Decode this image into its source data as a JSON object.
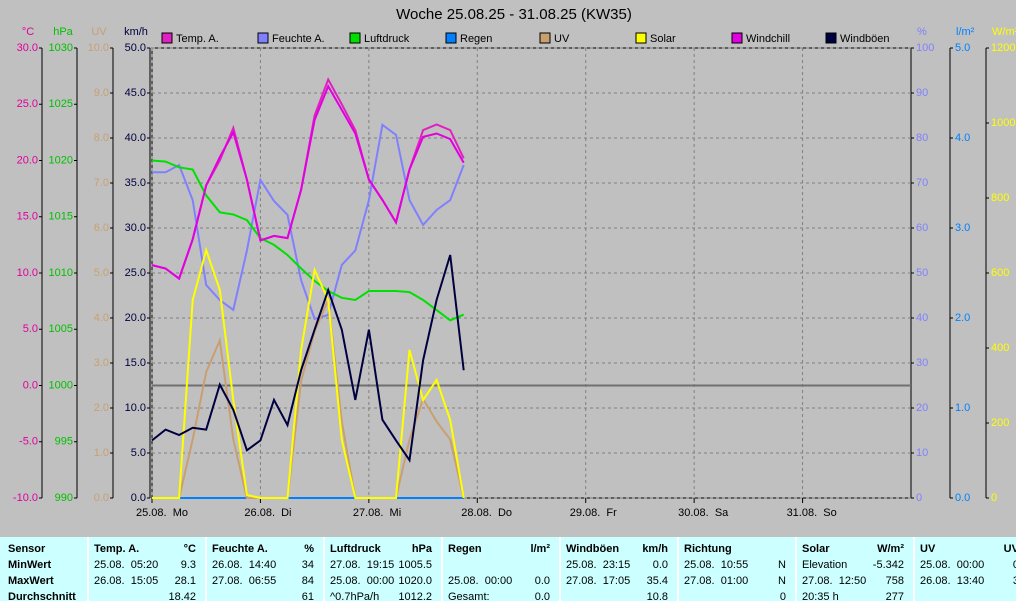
{
  "chart_data": {
    "type": "line",
    "title": "Woche 25.08.25 - 31.08.25 (KW35)",
    "xlim": [
      0,
      168
    ],
    "xticks": [
      {
        "value": 0,
        "label": "25.08.  Mo"
      },
      {
        "value": 24,
        "label": "26.08.  Di"
      },
      {
        "value": 48,
        "label": "27.08.  Mi"
      },
      {
        "value": 72,
        "label": "28.08.  Do"
      },
      {
        "value": 96,
        "label": "29.08.  Fr"
      },
      {
        "value": 120,
        "label": "30.08.  Sa"
      },
      {
        "value": 144,
        "label": "31.08.  So"
      }
    ],
    "grid": true,
    "axes": [
      {
        "label": "°C",
        "color": "#e000a0",
        "side": "left",
        "lim": [
          -10,
          30
        ],
        "ticks": [
          {
            "value": 30,
            "label": "30.0"
          },
          {
            "value": 25,
            "label": "25.0"
          },
          {
            "value": 20,
            "label": "20.0"
          },
          {
            "value": 15,
            "label": "15.0"
          },
          {
            "value": 10,
            "label": "10.0"
          },
          {
            "value": 5,
            "label": "5.0"
          },
          {
            "value": 0,
            "label": "0.0"
          },
          {
            "value": -5,
            "label": "-5.0"
          },
          {
            "value": -10,
            "label": "-10.0"
          }
        ]
      },
      {
        "label": "hPa",
        "color": "#00c000",
        "side": "left",
        "lim": [
          990,
          1030
        ],
        "ticks": [
          1030,
          1025,
          1020,
          1015,
          1010,
          1005,
          1000,
          995,
          990
        ]
      },
      {
        "label": "UV",
        "color": "#c8a070",
        "side": "left",
        "lim": [
          0,
          10
        ],
        "ticks": [
          {
            "value": 10,
            "label": "10.0"
          },
          {
            "value": 9,
            "label": "9.0"
          },
          {
            "value": 8,
            "label": "8.0"
          },
          {
            "value": 7,
            "label": "7.0"
          },
          {
            "value": 6,
            "label": "6.0"
          },
          {
            "value": 5,
            "label": "5.0"
          },
          {
            "value": 4,
            "label": "4.0"
          },
          {
            "value": 3,
            "label": "3.0"
          },
          {
            "value": 2,
            "label": "2.0"
          },
          {
            "value": 1,
            "label": "1.0"
          },
          {
            "value": 0,
            "label": "0.0"
          }
        ]
      },
      {
        "label": "km/h",
        "color": "#000040",
        "side": "left",
        "lim": [
          0,
          50
        ],
        "ticks": [
          {
            "value": 50,
            "label": "50.0"
          },
          {
            "value": 45,
            "label": "45.0"
          },
          {
            "value": 40,
            "label": "40.0"
          },
          {
            "value": 35,
            "label": "35.0"
          },
          {
            "value": 30,
            "label": "30.0"
          },
          {
            "value": 25,
            "label": "25.0"
          },
          {
            "value": 20,
            "label": "20.0"
          },
          {
            "value": 15,
            "label": "15.0"
          },
          {
            "value": 10,
            "label": "10.0"
          },
          {
            "value": 5,
            "label": "5.0"
          },
          {
            "value": 0,
            "label": "0.0"
          }
        ]
      },
      {
        "label": "%",
        "color": "#8080ff",
        "side": "right",
        "lim": [
          0,
          100
        ],
        "ticks": [
          100,
          90,
          80,
          70,
          60,
          50,
          40,
          30,
          20,
          10,
          0
        ]
      },
      {
        "label": "l/m²",
        "color": "#0080ff",
        "side": "right",
        "lim": [
          0,
          5
        ],
        "ticks": [
          {
            "value": 5,
            "label": "5.0"
          },
          {
            "value": 4,
            "label": "4.0"
          },
          {
            "value": 3,
            "label": "3.0"
          },
          {
            "value": 2,
            "label": "2.0"
          },
          {
            "value": 1,
            "label": "1.0"
          },
          {
            "value": 0,
            "label": "0.0"
          }
        ]
      },
      {
        "label": "W/m²",
        "color": "#ffff00",
        "side": "right",
        "lim": [
          0,
          1200
        ],
        "ticks": [
          1200,
          1000,
          800,
          600,
          400,
          200,
          0
        ]
      }
    ],
    "x": [
      0,
      3,
      6,
      9,
      12,
      15,
      18,
      21,
      24,
      27,
      30,
      33,
      36,
      39,
      42,
      45,
      48,
      51,
      54,
      57,
      60,
      63,
      66,
      69
    ],
    "series": [
      {
        "name": "Temp. A.",
        "color": "#e020c0",
        "axis": 0,
        "values": [
          10.7,
          10.4,
          9.5,
          13,
          17.8,
          20,
          22.9,
          18.3,
          12.9,
          13.3,
          13.1,
          17.4,
          24,
          27.2,
          25,
          22.7,
          18.3,
          16.5,
          14.5,
          19.2,
          22.7,
          23.2,
          22.7,
          20.2
        ]
      },
      {
        "name": "Feuchte A.",
        "color": "#8080ff",
        "axis": 4,
        "values": [
          72.4,
          72.4,
          74,
          66.2,
          47.3,
          44,
          41.8,
          55,
          70.7,
          66,
          62.9,
          48.4,
          39.8,
          40.7,
          51.8,
          55,
          66.2,
          82.9,
          80.7,
          66.2,
          60.7,
          64,
          66.2,
          74
        ]
      },
      {
        "name": "Luftdruck",
        "color": "#00e000",
        "axis": 1,
        "values": [
          1020,
          1019.9,
          1019.4,
          1019.2,
          1016.9,
          1015.4,
          1015.2,
          1014.7,
          1013.1,
          1012.5,
          1011.6,
          1010.4,
          1009.3,
          1008.4,
          1007.8,
          1007.6,
          1008.4,
          1008.4,
          1008.4,
          1008.3,
          1007.6,
          1006.7,
          1005.8,
          1006.3
        ]
      },
      {
        "name": "Regen",
        "color": "#0080ff",
        "axis": 5,
        "values": [
          0,
          0,
          0,
          0,
          0,
          0,
          0,
          0,
          0,
          0,
          0,
          0,
          0,
          0,
          0,
          0,
          0,
          0,
          0,
          0,
          0,
          0,
          0,
          0
        ]
      },
      {
        "name": "UV",
        "color": "#c8a070",
        "axis": 2,
        "values": [
          0,
          0,
          0,
          1.3,
          2.8,
          3.5,
          1.3,
          0,
          0,
          0,
          0,
          2.6,
          3.7,
          4.4,
          1.7,
          0,
          0,
          0,
          0,
          1.3,
          2.2,
          1.7,
          1.3,
          0
        ]
      },
      {
        "name": "Solar",
        "color": "#ffff00",
        "axis": 6,
        "values": [
          0,
          0,
          0,
          528,
          661,
          555,
          261,
          8,
          0,
          0,
          0,
          395,
          608,
          528,
          155,
          0,
          0,
          0,
          0,
          395,
          261,
          315,
          208,
          0
        ]
      },
      {
        "name": "Windchill",
        "color": "#e000e0",
        "axis": 0,
        "values": [
          10.7,
          10.4,
          9.5,
          13,
          17.8,
          20.3,
          22.5,
          18.3,
          12.9,
          13.3,
          13.1,
          17.4,
          23.6,
          26.6,
          24.5,
          22.4,
          18.3,
          16.5,
          14.5,
          19.2,
          22.1,
          22.4,
          21.9,
          19.8
        ]
      },
      {
        "name": "Windböen",
        "color": "#000040",
        "axis": 3,
        "values": [
          6.4,
          7.6,
          7,
          7.8,
          7.6,
          12.6,
          9.8,
          5.3,
          6.4,
          10.9,
          8.1,
          14.2,
          18.7,
          23.1,
          18.7,
          10.9,
          18.7,
          8.7,
          6.4,
          4.2,
          15.3,
          22,
          27,
          14.2
        ]
      }
    ]
  },
  "table": {
    "row_labels": [
      "Sensor",
      "MinWert",
      "MaxWert",
      "Durchschnitt"
    ],
    "groups": [
      {
        "name": "Temp. A.",
        "unit": "°C",
        "rows": [
          [
            "25.08.  05:20",
            "9.3"
          ],
          [
            "26.08.  15:05",
            "28.1"
          ],
          [
            "18.42"
          ]
        ]
      },
      {
        "name": "Feuchte A.",
        "unit": "%",
        "rows": [
          [
            "26.08.  14:40",
            "34"
          ],
          [
            "27.08.  06:55",
            "84"
          ],
          [
            "61"
          ]
        ]
      },
      {
        "name": "Luftdruck",
        "unit": "hPa",
        "rows": [
          [
            "27.08.  19:15",
            "1005.5"
          ],
          [
            "25.08.  00:00",
            "1020.0"
          ],
          [
            "^0.7hPa/h",
            "1012.2"
          ]
        ]
      },
      {
        "name": "Regen",
        "unit": "l/m²",
        "rows": [
          [],
          [
            "25.08.  00:00",
            "0.0"
          ],
          [
            "Gesamt:",
            "0.0"
          ]
        ]
      },
      {
        "name": "Windböen",
        "unit": "km/h",
        "rows": [
          [
            "25.08.  23:15",
            "0.0"
          ],
          [
            "27.08.  17:05",
            "35.4"
          ],
          [
            "10.8"
          ]
        ]
      },
      {
        "name": "Richtung",
        "rows": [
          [
            "25.08.  10:55",
            "N"
          ],
          [
            "27.08.  01:00",
            "N"
          ],
          [
            "0"
          ]
        ]
      },
      {
        "name": "Solar",
        "unit": "W/m²",
        "rows": [
          [
            "Elevation",
            "-5.342"
          ],
          [
            "27.08.  12:50",
            "758"
          ],
          [
            "20:35 h",
            "277"
          ]
        ]
      },
      {
        "name": "UV",
        "unit": "UV-",
        "rows": [
          [
            "25.08.  00:00",
            "0."
          ],
          [
            "26.08.  13:40",
            "3."
          ],
          [
            "1"
          ]
        ]
      }
    ]
  }
}
